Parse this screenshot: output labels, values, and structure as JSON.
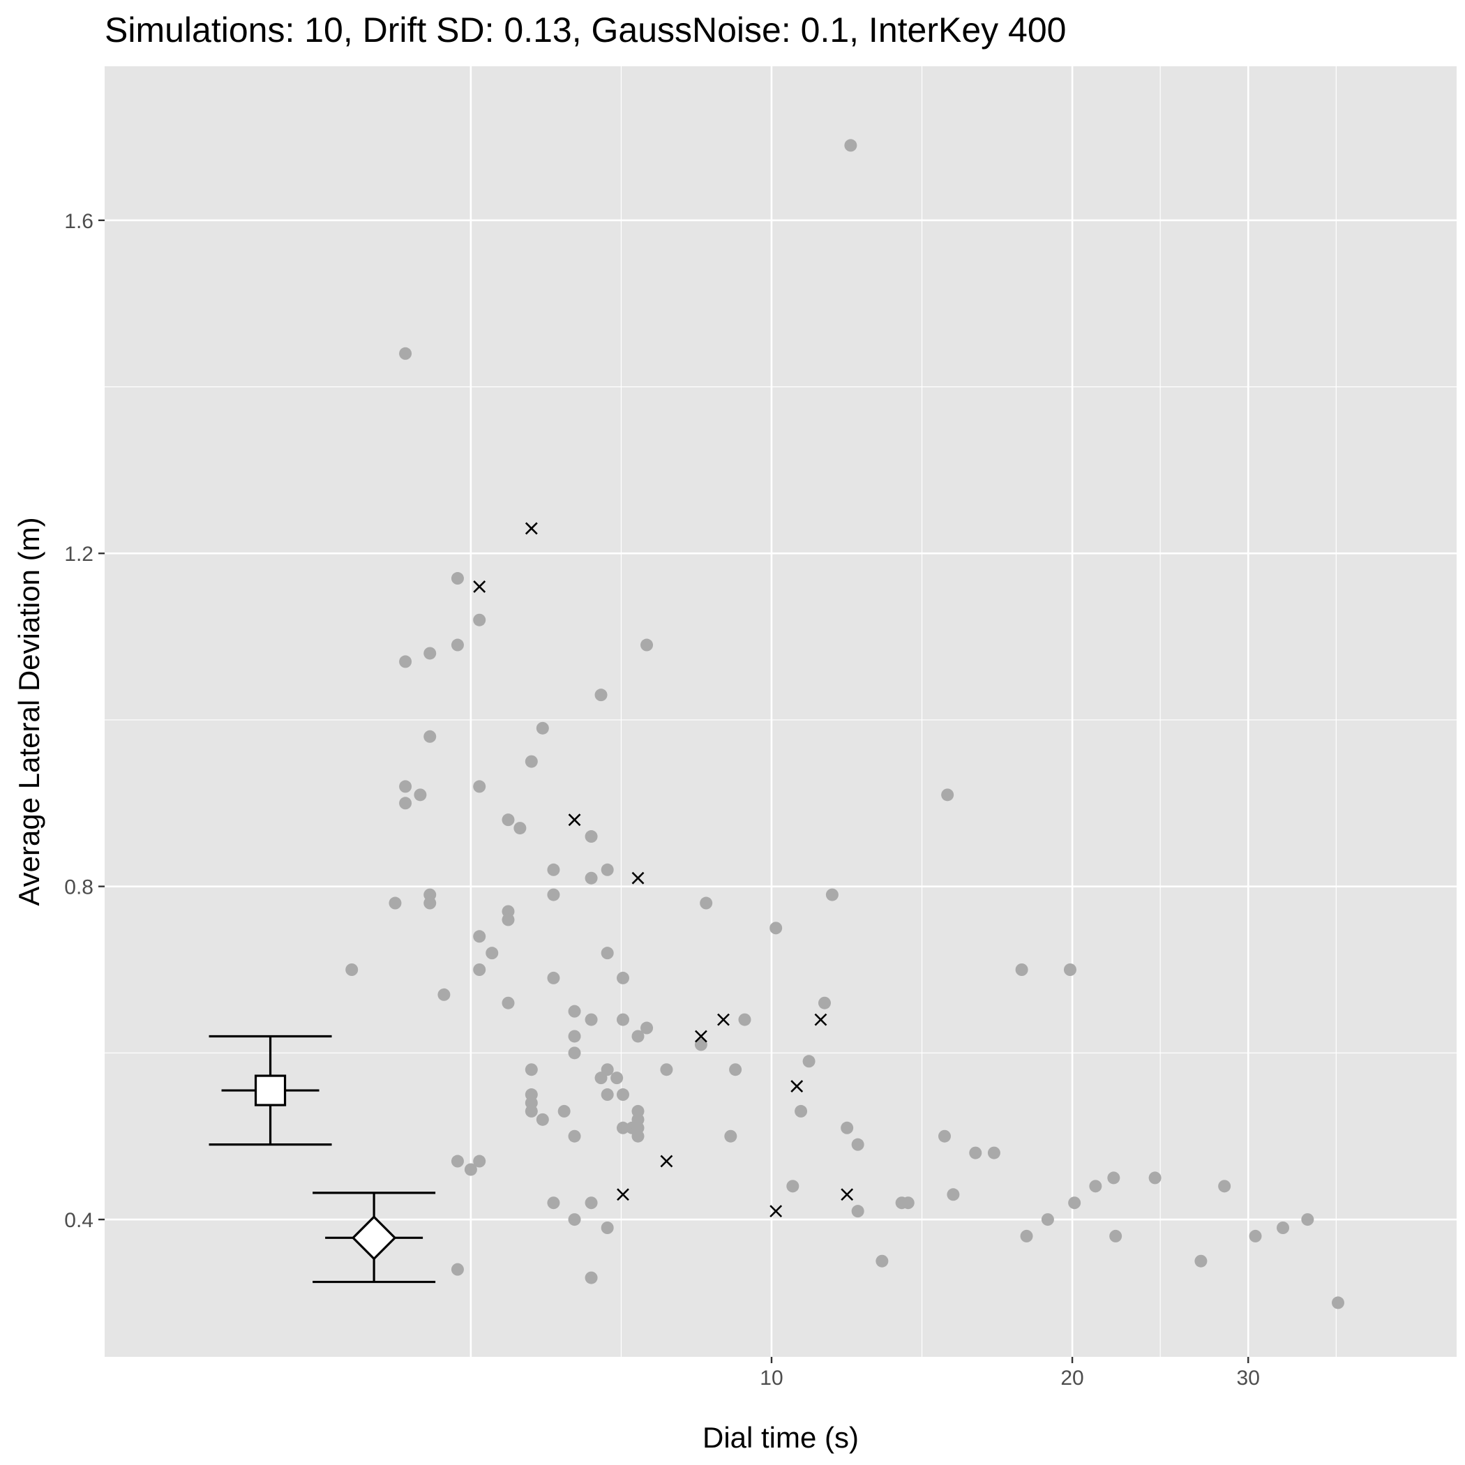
{
  "chart_data": {
    "type": "scatter",
    "title": "Simulations: 10, Drift SD: 0.13, GaussNoise: 0.1, InterKey 400",
    "xlabel": "Dial time (s)",
    "ylabel": "Average Lateral Deviation (m)",
    "x_scale": "log10",
    "xlim": [
      2.15,
      48.5
    ],
    "ylim": [
      0.235,
      1.785
    ],
    "x_ticks": [
      10,
      20,
      30
    ],
    "x_tick_labels": [
      "10",
      "20",
      "30"
    ],
    "y_ticks": [
      0.4,
      0.8,
      1.2,
      1.6
    ],
    "y_tick_labels": [
      "0.4",
      "0.8",
      "1.2",
      "1.6"
    ],
    "grid": true,
    "colors": {
      "panel_background": "#e5e5e5",
      "grid_line": "#ffffff",
      "simulated_points": "#a9a9a9",
      "trial_markers": "#000000",
      "summary_marker_fill": "#ffffff",
      "error_bar": "#000000"
    },
    "series": [
      {
        "marker": "circle",
        "points": [
          [
            3.8,
            0.7
          ],
          [
            4.3,
            1.44
          ],
          [
            4.3,
            1.07
          ],
          [
            4.3,
            0.92
          ],
          [
            4.3,
            0.9
          ],
          [
            4.2,
            0.78
          ],
          [
            4.45,
            0.91
          ],
          [
            4.55,
            1.08
          ],
          [
            4.55,
            0.98
          ],
          [
            4.55,
            0.79
          ],
          [
            4.55,
            0.78
          ],
          [
            4.7,
            0.67
          ],
          [
            4.85,
            1.17
          ],
          [
            4.85,
            1.09
          ],
          [
            4.85,
            0.47
          ],
          [
            4.85,
            0.34
          ],
          [
            5.0,
            0.46
          ],
          [
            5.1,
            1.12
          ],
          [
            5.1,
            0.92
          ],
          [
            5.1,
            0.74
          ],
          [
            5.1,
            0.7
          ],
          [
            5.1,
            0.47
          ],
          [
            5.25,
            0.72
          ],
          [
            5.45,
            0.88
          ],
          [
            5.45,
            0.77
          ],
          [
            5.45,
            0.76
          ],
          [
            5.45,
            0.66
          ],
          [
            5.6,
            0.87
          ],
          [
            5.75,
            0.95
          ],
          [
            5.75,
            0.58
          ],
          [
            5.75,
            0.55
          ],
          [
            5.75,
            0.54
          ],
          [
            5.75,
            0.53
          ],
          [
            5.9,
            0.99
          ],
          [
            5.9,
            0.52
          ],
          [
            6.05,
            0.82
          ],
          [
            6.05,
            0.79
          ],
          [
            6.05,
            0.69
          ],
          [
            6.05,
            0.42
          ],
          [
            6.2,
            0.53
          ],
          [
            6.35,
            0.65
          ],
          [
            6.35,
            0.62
          ],
          [
            6.35,
            0.6
          ],
          [
            6.35,
            0.5
          ],
          [
            6.35,
            0.4
          ],
          [
            6.6,
            0.86
          ],
          [
            6.6,
            0.81
          ],
          [
            6.6,
            0.64
          ],
          [
            6.6,
            0.42
          ],
          [
            6.6,
            0.33
          ],
          [
            6.75,
            1.03
          ],
          [
            6.75,
            0.57
          ],
          [
            6.85,
            0.82
          ],
          [
            6.85,
            0.72
          ],
          [
            6.85,
            0.58
          ],
          [
            6.85,
            0.55
          ],
          [
            6.85,
            0.39
          ],
          [
            7.0,
            0.57
          ],
          [
            7.1,
            0.69
          ],
          [
            7.1,
            0.64
          ],
          [
            7.1,
            0.55
          ],
          [
            7.1,
            0.51
          ],
          [
            7.25,
            0.51
          ],
          [
            7.35,
            0.62
          ],
          [
            7.35,
            0.53
          ],
          [
            7.35,
            0.52
          ],
          [
            7.35,
            0.51
          ],
          [
            7.35,
            0.5
          ],
          [
            7.5,
            1.09
          ],
          [
            7.5,
            0.63
          ],
          [
            7.85,
            0.58
          ],
          [
            8.5,
            0.61
          ],
          [
            8.6,
            0.78
          ],
          [
            9.1,
            0.5
          ],
          [
            9.2,
            0.58
          ],
          [
            9.4,
            0.64
          ],
          [
            10.1,
            0.75
          ],
          [
            10.5,
            0.44
          ],
          [
            10.7,
            0.53
          ],
          [
            10.9,
            0.59
          ],
          [
            11.3,
            0.66
          ],
          [
            11.5,
            0.79
          ],
          [
            11.9,
            0.51
          ],
          [
            12.0,
            1.69
          ],
          [
            12.2,
            0.49
          ],
          [
            12.2,
            0.41
          ],
          [
            12.9,
            0.35
          ],
          [
            13.5,
            0.42
          ],
          [
            13.7,
            0.42
          ],
          [
            14.9,
            0.5
          ],
          [
            15.0,
            0.91
          ],
          [
            15.2,
            0.43
          ],
          [
            16.0,
            0.48
          ],
          [
            16.7,
            0.48
          ],
          [
            17.8,
            0.7
          ],
          [
            18.0,
            0.38
          ],
          [
            18.9,
            0.4
          ],
          [
            19.9,
            0.7
          ],
          [
            20.1,
            0.42
          ],
          [
            21.1,
            0.44
          ],
          [
            22.0,
            0.45
          ],
          [
            22.1,
            0.38
          ],
          [
            24.2,
            0.45
          ],
          [
            26.9,
            0.35
          ],
          [
            28.4,
            0.44
          ],
          [
            30.5,
            0.38
          ],
          [
            32.5,
            0.39
          ],
          [
            34.4,
            0.4
          ],
          [
            36.9,
            0.3
          ]
        ]
      },
      {
        "marker": "x",
        "points": [
          [
            5.1,
            1.16
          ],
          [
            5.75,
            1.23
          ],
          [
            6.35,
            0.88
          ],
          [
            7.35,
            0.81
          ],
          [
            7.1,
            0.43
          ],
          [
            7.85,
            0.47
          ],
          [
            8.5,
            0.62
          ],
          [
            8.95,
            0.64
          ],
          [
            10.1,
            0.41
          ],
          [
            10.6,
            0.56
          ],
          [
            11.2,
            0.64
          ],
          [
            11.9,
            0.43
          ]
        ]
      }
    ],
    "summary_markers": [
      {
        "marker": "square",
        "x": 3.15,
        "y": 0.555,
        "y_low": 0.49,
        "y_high": 0.62
      },
      {
        "marker": "diamond",
        "x": 4.0,
        "y": 0.378,
        "y_low": 0.325,
        "y_high": 0.432
      }
    ]
  }
}
